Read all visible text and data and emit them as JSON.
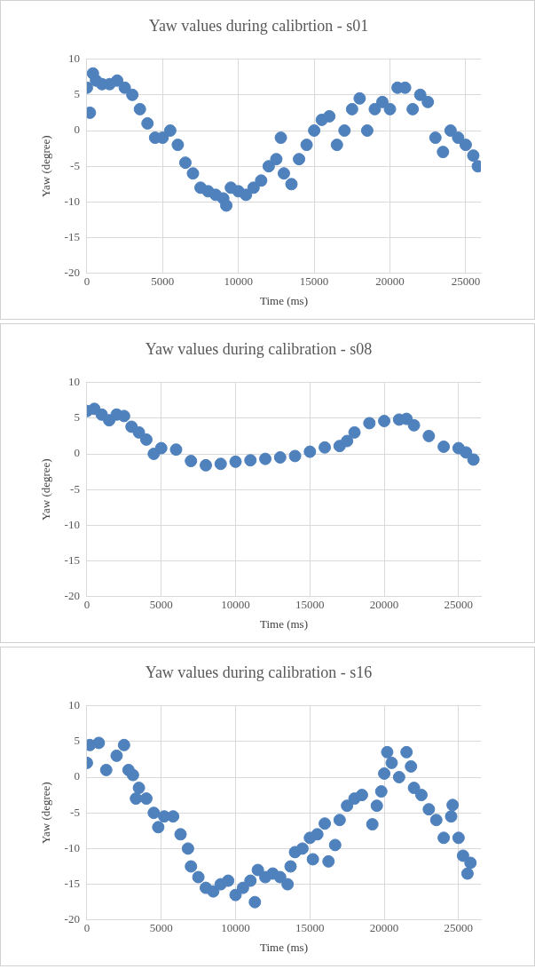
{
  "chart_data": [
    {
      "type": "scatter",
      "title": "Yaw values during calibrtion - s01",
      "xlabel": "Time (ms)",
      "ylabel": "Yaw (degree)",
      "color": "#4f81bd",
      "marker": "circle",
      "grid": true,
      "xlim": [
        0,
        26000
      ],
      "ylim": [
        -20,
        10
      ],
      "xticks": [
        0,
        5000,
        10000,
        15000,
        20000,
        25000
      ],
      "yticks": [
        -20,
        -15,
        -10,
        -5,
        0,
        5,
        10
      ],
      "x": [
        0,
        200,
        400,
        600,
        1000,
        1500,
        2000,
        2500,
        3000,
        3500,
        4000,
        4500,
        5000,
        5500,
        6000,
        6500,
        7000,
        7500,
        8000,
        8500,
        9000,
        9200,
        9500,
        10000,
        10500,
        11000,
        11500,
        12000,
        12500,
        12800,
        13000,
        13500,
        14000,
        14500,
        15000,
        15500,
        16000,
        16500,
        17000,
        17500,
        18000,
        18500,
        19000,
        19500,
        20000,
        20500,
        21000,
        21500,
        22000,
        22500,
        23000,
        23500,
        24000,
        24500,
        25000,
        25500,
        25800
      ],
      "values": [
        6,
        2.5,
        8,
        7,
        6.5,
        6.5,
        7,
        6,
        5,
        3,
        1,
        -1,
        -1,
        0,
        -2,
        -4.5,
        -6,
        -8,
        -8.5,
        -9,
        -9.5,
        -10.5,
        -8,
        -8.5,
        -9,
        -8,
        -7,
        -5,
        -4,
        -1,
        -6,
        -7.5,
        -4,
        -2,
        0,
        1.5,
        2,
        -2,
        0,
        3,
        4.5,
        0,
        3,
        4,
        3,
        6,
        6,
        3,
        5,
        4,
        -1,
        -3,
        0,
        -1,
        -2,
        -3.5,
        -5
      ]
    },
    {
      "type": "scatter",
      "title": "Yaw values during calibration - s08",
      "xlabel": "Time (ms)",
      "ylabel": "Yaw (degree)",
      "color": "#4f81bd",
      "marker": "circle",
      "grid": true,
      "xlim": [
        0,
        26500
      ],
      "ylim": [
        -20,
        10
      ],
      "xticks": [
        0,
        5000,
        10000,
        15000,
        20000,
        25000
      ],
      "yticks": [
        -20,
        -15,
        -10,
        -5,
        0,
        5,
        10
      ],
      "x": [
        0,
        500,
        1000,
        1500,
        2000,
        2500,
        3000,
        3500,
        4000,
        4500,
        5000,
        6000,
        7000,
        8000,
        9000,
        10000,
        11000,
        12000,
        13000,
        14000,
        15000,
        16000,
        17000,
        17500,
        18000,
        19000,
        20000,
        21000,
        21500,
        22000,
        23000,
        24000,
        25000,
        25500,
        26000
      ],
      "values": [
        6,
        6.3,
        5.5,
        4.7,
        5.5,
        5.3,
        3.8,
        3,
        2,
        0,
        0.8,
        0.6,
        -1,
        -1.6,
        -1.4,
        -1.1,
        -0.9,
        -0.7,
        -0.5,
        -0.3,
        0.3,
        0.9,
        1.1,
        1.8,
        3,
        4.3,
        4.6,
        4.8,
        4.9,
        4,
        2.5,
        1,
        0.8,
        0.2,
        -0.8
      ]
    },
    {
      "type": "scatter",
      "title": "Yaw values during calibration - s16",
      "xlabel": "Time (ms)",
      "ylabel": "Yaw (degree)",
      "color": "#4f81bd",
      "marker": "circle",
      "grid": true,
      "xlim": [
        0,
        26500
      ],
      "ylim": [
        -20,
        10
      ],
      "xticks": [
        0,
        5000,
        10000,
        15000,
        20000,
        25000
      ],
      "yticks": [
        -20,
        -15,
        -10,
        -5,
        0,
        5,
        10
      ],
      "x": [
        0,
        200,
        800,
        1300,
        2000,
        2500,
        2800,
        3100,
        3300,
        3500,
        4000,
        4500,
        4800,
        5200,
        5800,
        6300,
        6800,
        7000,
        7500,
        8000,
        8500,
        9000,
        9500,
        10000,
        10500,
        11000,
        11300,
        11500,
        12000,
        12500,
        13000,
        13500,
        13700,
        14000,
        14500,
        15000,
        15200,
        15500,
        16000,
        16250,
        16700,
        17000,
        17500,
        18000,
        18500,
        19200,
        19500,
        19800,
        20000,
        20200,
        20500,
        21000,
        21500,
        21800,
        22000,
        22500,
        23000,
        23500,
        24000,
        24500,
        24600,
        25000,
        25300,
        25600,
        25800
      ],
      "values": [
        2,
        4.5,
        4.8,
        1,
        3,
        4.5,
        1,
        0.3,
        -3,
        -1.5,
        -3,
        -5,
        -7,
        -5.5,
        -5.5,
        -8,
        -10,
        -12.5,
        -14,
        -15.5,
        -16,
        -15,
        -14.5,
        -16.5,
        -15.5,
        -14.5,
        -17.5,
        -13,
        -14,
        -13.5,
        -14,
        -15,
        -12.5,
        -10.5,
        -10,
        -8.5,
        -11.5,
        -8,
        -6.5,
        -11.8,
        -9.5,
        -6,
        -4,
        -3,
        -2.5,
        -6.6,
        -4,
        -2,
        0.5,
        3.5,
        2,
        0,
        3.5,
        1.5,
        -1.5,
        -2.5,
        -4.5,
        -6,
        -8.5,
        -5.5,
        -3.9,
        -8.5,
        -11,
        -13.5,
        -12
      ]
    }
  ]
}
